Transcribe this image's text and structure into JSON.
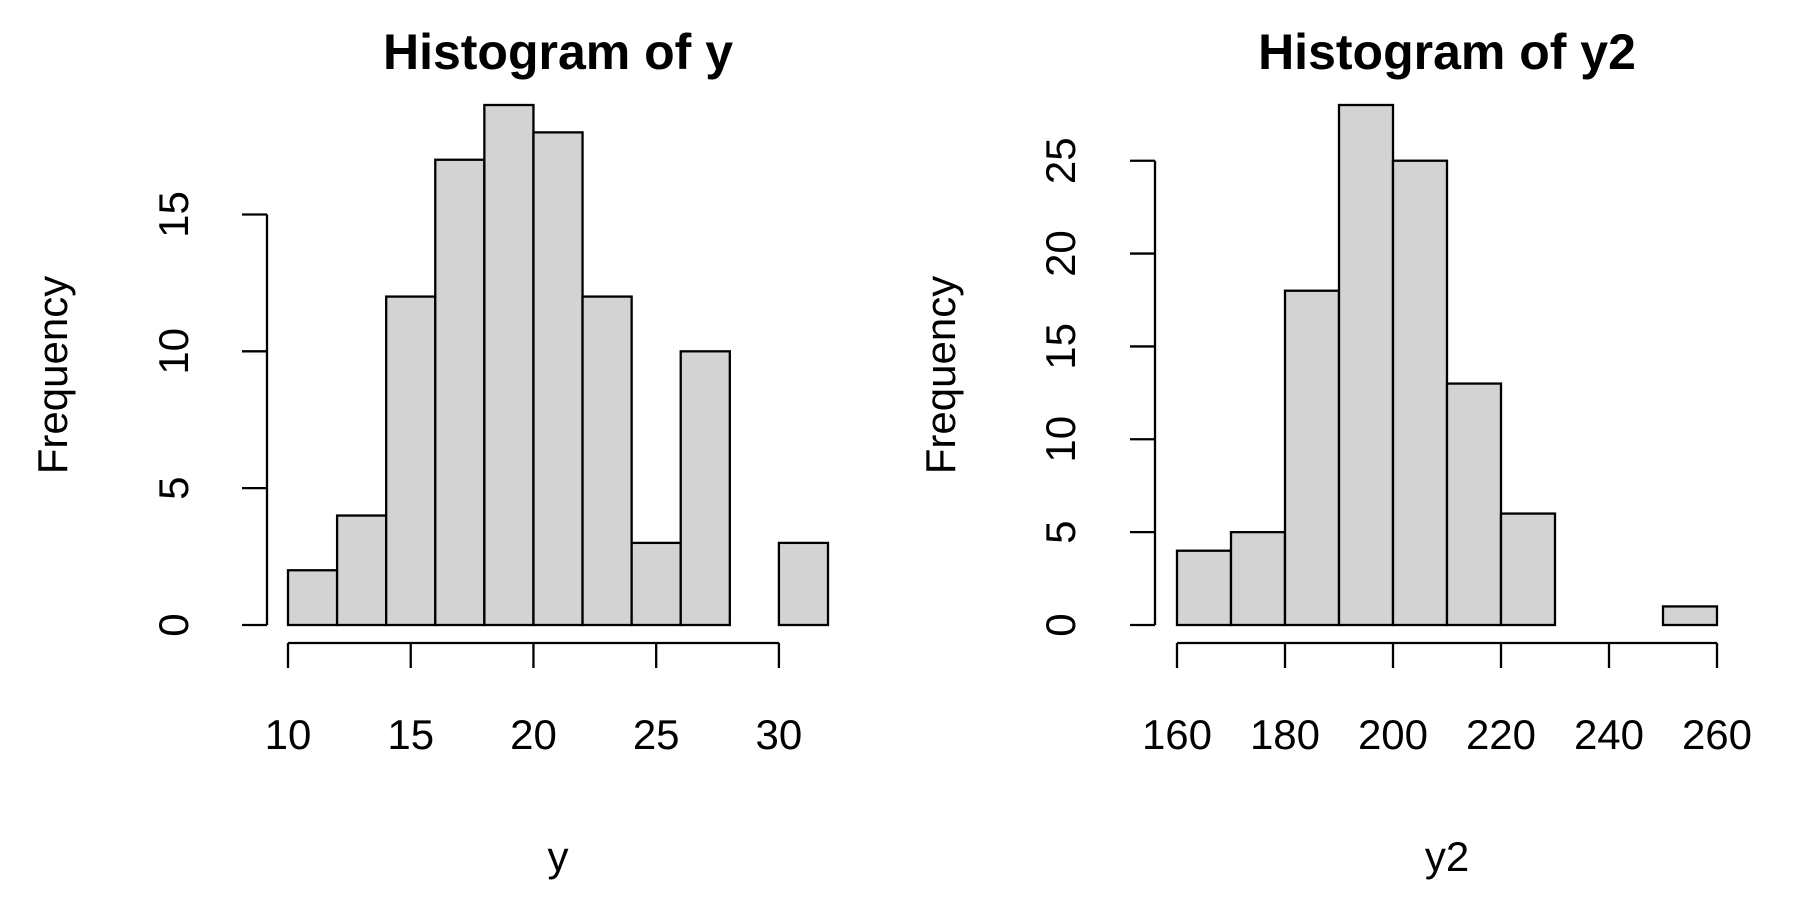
{
  "chart_data": [
    {
      "type": "histogram",
      "title": "Histogram of y",
      "x_label": "y",
      "y_label": "Frequency",
      "bins": [
        10,
        12,
        14,
        16,
        18,
        20,
        22,
        24,
        26,
        28,
        30,
        32
      ],
      "values": [
        2,
        4,
        12,
        17,
        19,
        18,
        12,
        3,
        10,
        0,
        3
      ],
      "color": "#d3d3d3",
      "xlim": [
        10,
        32
      ],
      "ylim": [
        0,
        19
      ],
      "xticks": [
        10,
        15,
        20,
        25,
        30
      ],
      "yticks": [
        0,
        5,
        10,
        15
      ]
    },
    {
      "type": "histogram",
      "title": "Histogram of y2",
      "x_label": "y2",
      "y_label": "Frequency",
      "bins": [
        160,
        170,
        180,
        190,
        200,
        210,
        220,
        230,
        240,
        250,
        260
      ],
      "values": [
        4,
        5,
        18,
        28,
        25,
        13,
        6,
        0,
        0,
        1
      ],
      "color": "#d3d3d3",
      "xlim": [
        160,
        260
      ],
      "ylim": [
        0,
        28
      ],
      "xticks": [
        160,
        180,
        200,
        220,
        240,
        260
      ],
      "yticks": [
        0,
        5,
        10,
        15,
        20,
        25
      ]
    }
  ]
}
